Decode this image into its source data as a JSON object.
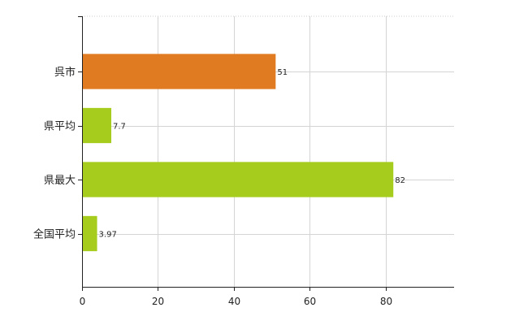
{
  "chart_data": {
    "type": "bar",
    "orientation": "horizontal",
    "categories": [
      "呉市",
      "県平均",
      "県最大",
      "全国平均"
    ],
    "values": [
      51,
      7.7,
      82,
      3.97
    ],
    "value_labels": [
      "51",
      "7.7",
      "82",
      "3.97"
    ],
    "bar_colors": [
      "#E07B22",
      "#A6CC1E",
      "#A6CC1E",
      "#A6CC1E"
    ],
    "xlim": [
      0,
      98
    ],
    "xticks": [
      0,
      20,
      40,
      60,
      80
    ],
    "tick_labels": [
      "0",
      "20",
      "40",
      "60",
      "80"
    ],
    "grid": true,
    "title": "",
    "xlabel": "",
    "ylabel": ""
  }
}
